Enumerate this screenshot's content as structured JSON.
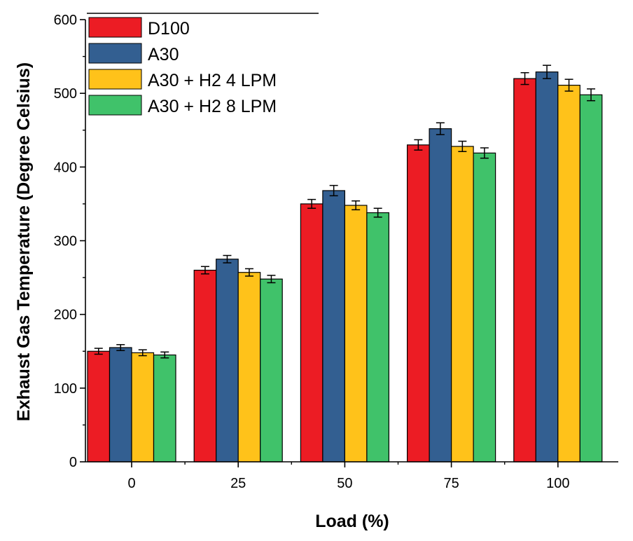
{
  "chart_data": {
    "type": "bar",
    "title": "",
    "xlabel": "Load (%)",
    "ylabel": "Exhaust Gas Temperature (Degree Celsius)",
    "categories": [
      "0",
      "25",
      "50",
      "75",
      "100"
    ],
    "ylim": [
      0,
      600
    ],
    "yticks": [
      "0",
      "100",
      "200",
      "300",
      "400",
      "500",
      "600"
    ],
    "legend_position": "top-left",
    "series": [
      {
        "name": "D100",
        "color": "#ec1c24",
        "values": [
          150,
          260,
          350,
          430,
          520
        ],
        "errors": [
          4,
          5,
          6,
          7,
          8
        ]
      },
      {
        "name": "A30",
        "color": "#335f91",
        "values": [
          155,
          275,
          368,
          452,
          529
        ],
        "errors": [
          4,
          5,
          7,
          8,
          9
        ]
      },
      {
        "name": "A30 + H2 4 LPM",
        "color": "#ffc21a",
        "values": [
          148,
          257,
          348,
          428,
          511
        ],
        "errors": [
          4,
          5,
          6,
          7,
          8
        ]
      },
      {
        "name": "A30 + H2 8 LPM",
        "color": "#40c26a",
        "values": [
          145,
          248,
          338,
          419,
          498
        ],
        "errors": [
          4,
          5,
          6,
          7,
          8
        ]
      }
    ]
  }
}
